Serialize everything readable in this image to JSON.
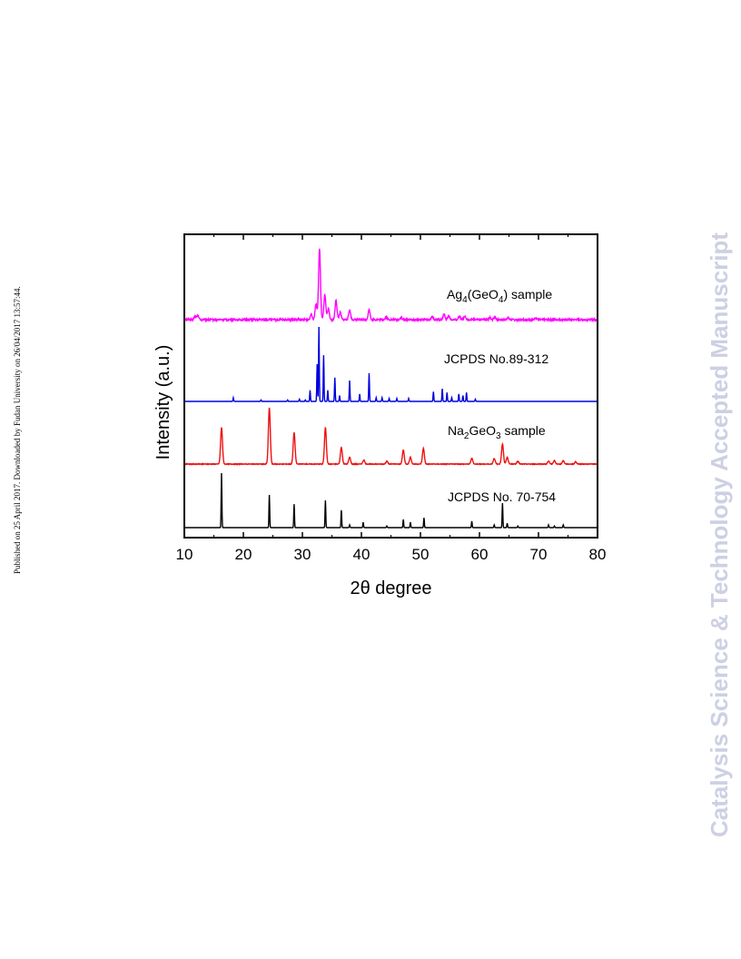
{
  "page_note": "Published on 25 April 2017. Downloaded by Fudan University on 26/04/2017 13:57:44.",
  "watermark": "Catalysis Science & Technology Accepted Manuscript",
  "colors": {
    "ag4geo4_sample": "#ff00ff",
    "jcpds_89_312": "#0000dd",
    "na2geo3_sample": "#ee1111",
    "jcpds_70_754": "#000000"
  },
  "chart_data": {
    "type": "line",
    "xlabel_parts": [
      "2",
      "θ",
      " degree"
    ],
    "ylabel": "Intensity (a.u.)",
    "xlim": [
      10,
      80
    ],
    "xticks": [
      10,
      20,
      30,
      40,
      50,
      60,
      70,
      80
    ],
    "grid": false,
    "series": [
      {
        "key": "ag4geo4_sample",
        "label_parts": [
          [
            "Ag",
            ""
          ],
          [
            "4",
            "sub"
          ],
          [
            "(GeO",
            ""
          ],
          [
            "4",
            "sub"
          ],
          [
            ") sample",
            ""
          ]
        ],
        "peaks": [
          [
            11.8,
            0.05
          ],
          [
            12.3,
            0.06
          ],
          [
            31.5,
            0.08
          ],
          [
            32.3,
            0.22
          ],
          [
            32.9,
            1.0
          ],
          [
            33.8,
            0.35
          ],
          [
            34.4,
            0.15
          ],
          [
            35.7,
            0.27
          ],
          [
            36.4,
            0.1
          ],
          [
            38.0,
            0.14
          ],
          [
            41.3,
            0.14
          ],
          [
            44.2,
            0.04
          ],
          [
            46.7,
            0.03
          ],
          [
            52.0,
            0.04
          ],
          [
            54.0,
            0.08
          ],
          [
            54.8,
            0.05
          ],
          [
            56.6,
            0.05
          ],
          [
            57.5,
            0.04
          ],
          [
            61.8,
            0.03
          ],
          [
            62.6,
            0.04
          ],
          [
            64.8,
            0.03
          ],
          [
            69.5,
            0.03
          ]
        ],
        "noise": 0.025
      },
      {
        "key": "jcpds_89_312",
        "label_parts": [
          [
            "JCPDS No.89-312",
            ""
          ]
        ],
        "peaks": [
          [
            18.3,
            0.05
          ],
          [
            23.0,
            0.02
          ],
          [
            27.5,
            0.02
          ],
          [
            29.5,
            0.03
          ],
          [
            30.5,
            0.02
          ],
          [
            31.3,
            0.15
          ],
          [
            32.5,
            0.5
          ],
          [
            32.8,
            1.0
          ],
          [
            33.6,
            0.62
          ],
          [
            34.3,
            0.15
          ],
          [
            35.5,
            0.32
          ],
          [
            36.3,
            0.08
          ],
          [
            38.0,
            0.28
          ],
          [
            39.7,
            0.1
          ],
          [
            41.3,
            0.38
          ],
          [
            42.5,
            0.05
          ],
          [
            43.5,
            0.05
          ],
          [
            44.7,
            0.04
          ],
          [
            46.0,
            0.04
          ],
          [
            48.0,
            0.04
          ],
          [
            52.2,
            0.13
          ],
          [
            53.7,
            0.17
          ],
          [
            54.5,
            0.12
          ],
          [
            55.3,
            0.05
          ],
          [
            56.5,
            0.1
          ],
          [
            57.2,
            0.08
          ],
          [
            57.8,
            0.12
          ],
          [
            59.3,
            0.03
          ]
        ],
        "noise": 0
      },
      {
        "key": "na2geo3_sample",
        "label_parts": [
          [
            "Na",
            ""
          ],
          [
            "2",
            "sub"
          ],
          [
            "GeO",
            ""
          ],
          [
            "3",
            "sub"
          ],
          [
            " sample",
            ""
          ]
        ],
        "peaks": [
          [
            16.3,
            0.65
          ],
          [
            24.4,
            1.0
          ],
          [
            28.6,
            0.56
          ],
          [
            33.9,
            0.65
          ],
          [
            36.6,
            0.3
          ],
          [
            38.0,
            0.12
          ],
          [
            40.4,
            0.07
          ],
          [
            44.3,
            0.05
          ],
          [
            47.1,
            0.25
          ],
          [
            48.3,
            0.12
          ],
          [
            50.5,
            0.28
          ],
          [
            58.7,
            0.1
          ],
          [
            62.5,
            0.1
          ],
          [
            63.9,
            0.36
          ],
          [
            64.7,
            0.12
          ],
          [
            66.5,
            0.05
          ],
          [
            71.7,
            0.05
          ],
          [
            72.7,
            0.06
          ],
          [
            74.2,
            0.06
          ],
          [
            76.3,
            0.04
          ]
        ],
        "noise": 0.012
      },
      {
        "key": "jcpds_70_754",
        "label_parts": [
          [
            "JCPDS No. 70-754",
            ""
          ]
        ],
        "peaks": [
          [
            16.3,
            1.0
          ],
          [
            24.4,
            0.6
          ],
          [
            28.6,
            0.43
          ],
          [
            33.9,
            0.5
          ],
          [
            36.6,
            0.32
          ],
          [
            38.0,
            0.05
          ],
          [
            40.3,
            0.1
          ],
          [
            44.3,
            0.03
          ],
          [
            47.1,
            0.15
          ],
          [
            48.3,
            0.1
          ],
          [
            50.6,
            0.18
          ],
          [
            58.7,
            0.12
          ],
          [
            62.5,
            0.05
          ],
          [
            63.9,
            0.45
          ],
          [
            64.7,
            0.08
          ],
          [
            66.5,
            0.03
          ],
          [
            71.7,
            0.05
          ],
          [
            72.7,
            0.03
          ],
          [
            74.2,
            0.05
          ]
        ],
        "noise": 0
      }
    ]
  }
}
